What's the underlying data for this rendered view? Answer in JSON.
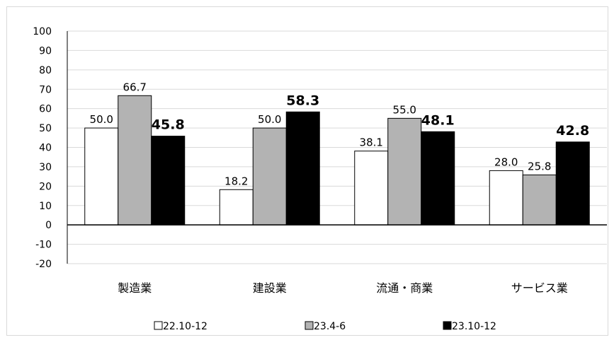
{
  "chart_data": {
    "type": "bar",
    "categories": [
      "製造業",
      "建設業",
      "流通・商業",
      "サービス業"
    ],
    "series": [
      {
        "name": "22.10-12",
        "values": [
          50.0,
          18.2,
          38.1,
          28.0
        ],
        "fill": "#ffffff",
        "stroke": "#000000",
        "bold_labels": false
      },
      {
        "name": "23.4-6",
        "values": [
          66.7,
          50.0,
          55.0,
          25.8
        ],
        "fill": "#b3b3b3",
        "stroke": "#000000",
        "bold_labels": false
      },
      {
        "name": "23.10-12",
        "values": [
          45.8,
          58.3,
          48.1,
          42.8
        ],
        "fill": "#000000",
        "stroke": "#000000",
        "bold_labels": true
      }
    ],
    "ylim": [
      -20,
      100
    ],
    "yticks": [
      "100",
      "90",
      "80",
      "70",
      "60",
      "50",
      "40",
      "30",
      "20",
      "10",
      "0",
      "-10",
      "-20"
    ],
    "gridlines": true,
    "legend_position": "bottom",
    "title": "",
    "xlabel": "",
    "ylabel": ""
  }
}
